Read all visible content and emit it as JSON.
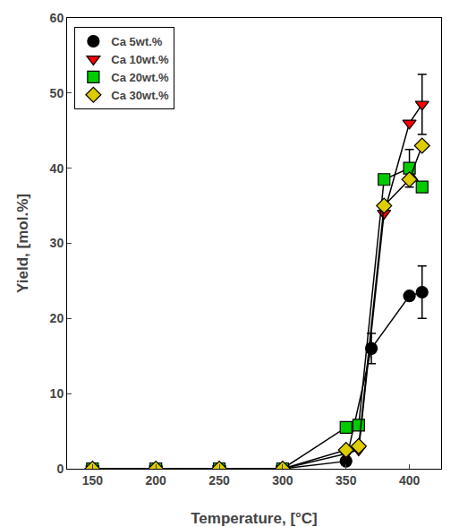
{
  "chart_data": {
    "type": "line",
    "xlabel": "Temperature, [°C]",
    "ylabel": "Yield, [mol.%]",
    "xlim": [
      130,
      425
    ],
    "ylim": [
      0,
      60
    ],
    "xticks": [
      150,
      200,
      250,
      300,
      350,
      400
    ],
    "yticks": [
      0,
      10,
      20,
      30,
      40,
      50,
      60
    ],
    "grid": false,
    "legend": "upper left",
    "series": [
      {
        "name": "Ca 5wt.%",
        "color": "black",
        "marker": "circle",
        "x": [
          150,
          200,
          250,
          300,
          350,
          370,
          400,
          410
        ],
        "values": [
          0,
          0,
          0,
          0,
          1.0,
          16.0,
          23.0,
          23.5
        ],
        "errors": [
          0,
          0,
          0,
          0,
          0,
          2.0,
          0,
          3.5
        ]
      },
      {
        "name": "Ca 10wt.%",
        "color": "red",
        "marker": "triangle-down",
        "x": [
          150,
          200,
          250,
          300,
          350,
          360,
          380,
          400,
          410
        ],
        "values": [
          0,
          0,
          0,
          0,
          2.0,
          2.5,
          34.0,
          46.0,
          48.5
        ],
        "errors": [
          0,
          0,
          0,
          0,
          0,
          0,
          0,
          0,
          4.0
        ]
      },
      {
        "name": "Ca 20wt.%",
        "color": "#00cc00",
        "marker": "square",
        "x": [
          150,
          200,
          250,
          300,
          350,
          360,
          380,
          400,
          410
        ],
        "values": [
          0,
          0,
          0,
          0,
          5.5,
          5.8,
          38.5,
          40.0,
          37.5
        ],
        "errors": [
          0,
          0,
          0,
          0,
          0,
          0,
          0,
          2.5,
          0
        ]
      },
      {
        "name": "Ca 30wt.%",
        "color": "#ddcc00",
        "marker": "diamond",
        "x": [
          150,
          200,
          250,
          300,
          350,
          360,
          380,
          400,
          410
        ],
        "values": [
          0,
          0,
          0,
          0,
          2.5,
          3.0,
          35.0,
          38.5,
          43.0
        ],
        "errors": [
          0,
          0,
          0,
          0,
          0,
          0,
          0,
          0,
          0
        ]
      }
    ]
  }
}
